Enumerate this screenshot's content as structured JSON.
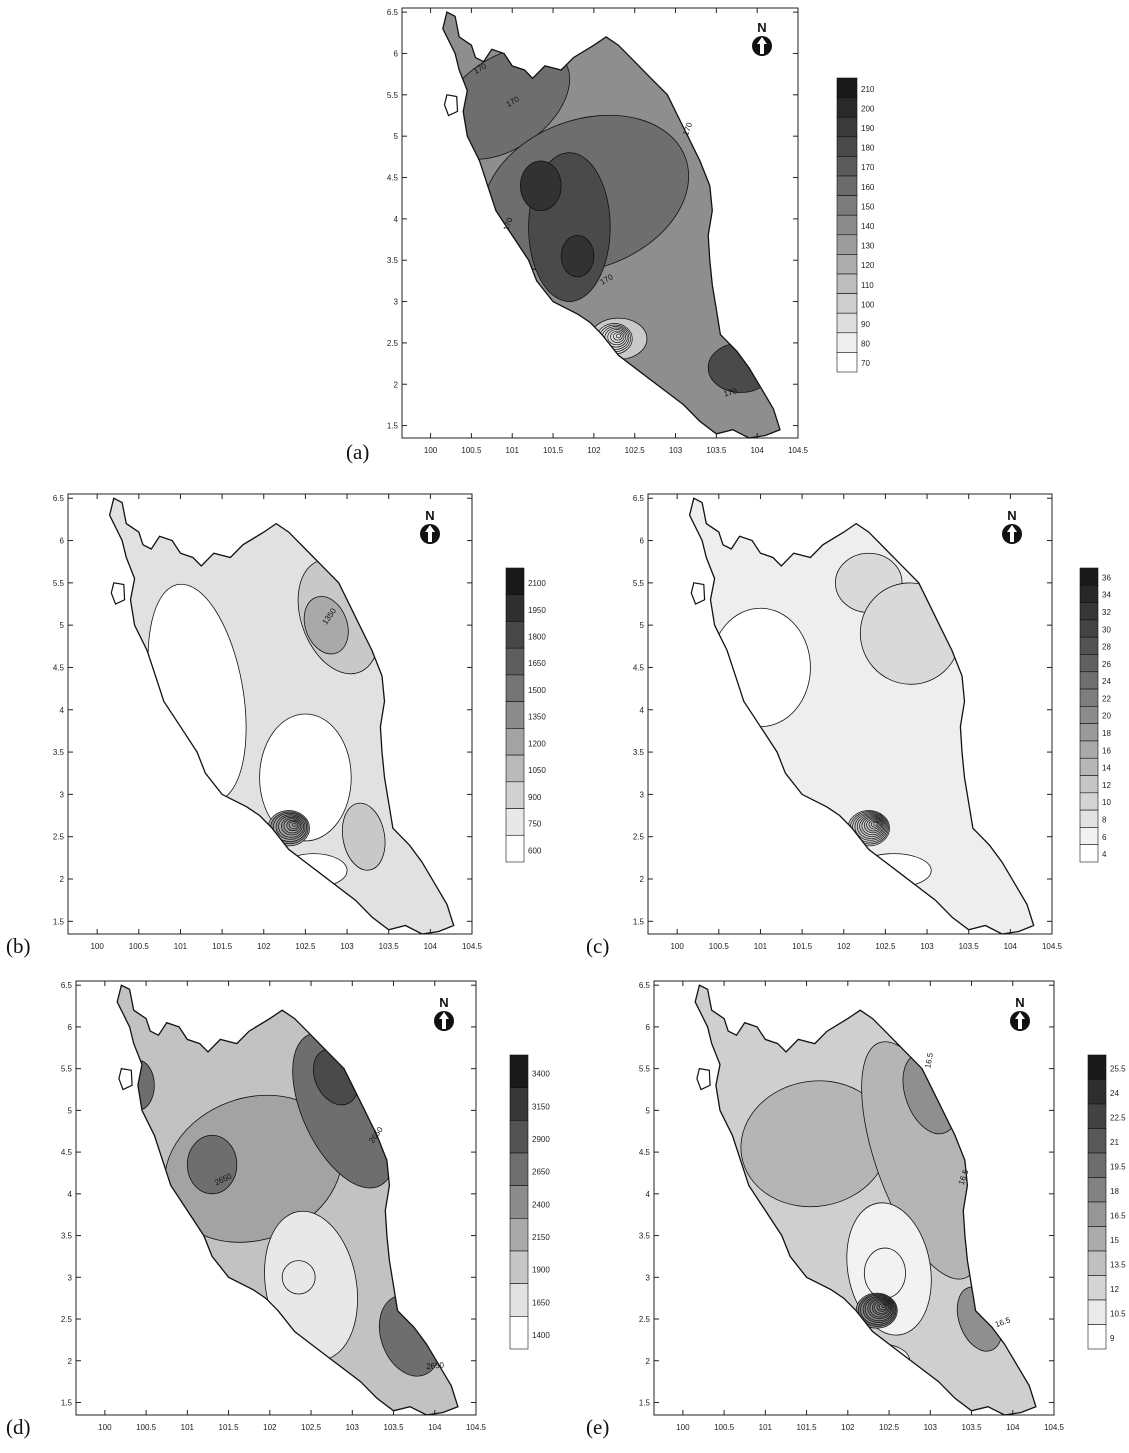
{
  "x_ticks": [
    "100",
    "100.5",
    "101",
    "101.5",
    "102",
    "102.5",
    "103",
    "103.5",
    "104",
    "104.5"
  ],
  "y_ticks": [
    "1.5",
    "2",
    "2.5",
    "3",
    "3.5",
    "4",
    "4.5",
    "5",
    "5.5",
    "6",
    "6.5"
  ],
  "north_letter": "N",
  "panels": [
    {
      "id": "a",
      "label": "(a)",
      "legend": [
        "210",
        "200",
        "190",
        "180",
        "170",
        "160",
        "150",
        "140",
        "130",
        "120",
        "110",
        "100",
        "90",
        "80",
        "70"
      ],
      "contour_labels": [
        "170",
        "170",
        "170",
        "170",
        "170",
        "170"
      ],
      "shades": {
        "bg": "#8e8e8e",
        "mid": "#6e6e6e",
        "dark": "#4a4a4a",
        "darker": "#323232",
        "light": "#c9c9c9"
      }
    },
    {
      "id": "b",
      "label": "(b)",
      "legend": [
        "2100",
        "1950",
        "1800",
        "1650",
        "1500",
        "1350",
        "1200",
        "1050",
        "900",
        "750",
        "600"
      ],
      "contour_labels": [
        "1350"
      ],
      "shades": {
        "bg": "#e1e1e1",
        "mid": "#c8c8c8",
        "dark": "#a9a9a9",
        "darker": "#8c8c8c",
        "light": "#ffffff"
      }
    },
    {
      "id": "c",
      "label": "(c)",
      "legend": [
        "36",
        "34",
        "32",
        "30",
        "28",
        "26",
        "24",
        "22",
        "20",
        "18",
        "16",
        "14",
        "12",
        "10",
        "8",
        "6",
        "4"
      ],
      "contour_labels": [],
      "shades": {
        "bg": "#eeeeee",
        "mid": "#d9d9d9",
        "dark": "#cccccc",
        "darker": "#c2c2c2",
        "light": "#ffffff"
      }
    },
    {
      "id": "d",
      "label": "(d)",
      "legend": [
        "3400",
        "3150",
        "2900",
        "2650",
        "2400",
        "2150",
        "1900",
        "1650",
        "1400"
      ],
      "contour_labels": [
        "2650",
        "2650",
        "2650"
      ],
      "shades": {
        "bg": "#c2c2c2",
        "mid": "#a3a3a3",
        "dark": "#6e6e6e",
        "darker": "#4a4a4a",
        "light": "#e8e8e8"
      }
    },
    {
      "id": "e",
      "label": "(e)",
      "legend": [
        "25.5",
        "24",
        "22.5",
        "21",
        "19.5",
        "18",
        "16.5",
        "15",
        "13.5",
        "12",
        "10.5",
        "9"
      ],
      "contour_labels": [
        "16.5",
        "16.5",
        "16.5"
      ],
      "shades": {
        "bg": "#cfcfcf",
        "mid": "#b5b5b5",
        "dark": "#8f8f8f",
        "darker": "#707070",
        "light": "#f2f2f2"
      }
    }
  ]
}
